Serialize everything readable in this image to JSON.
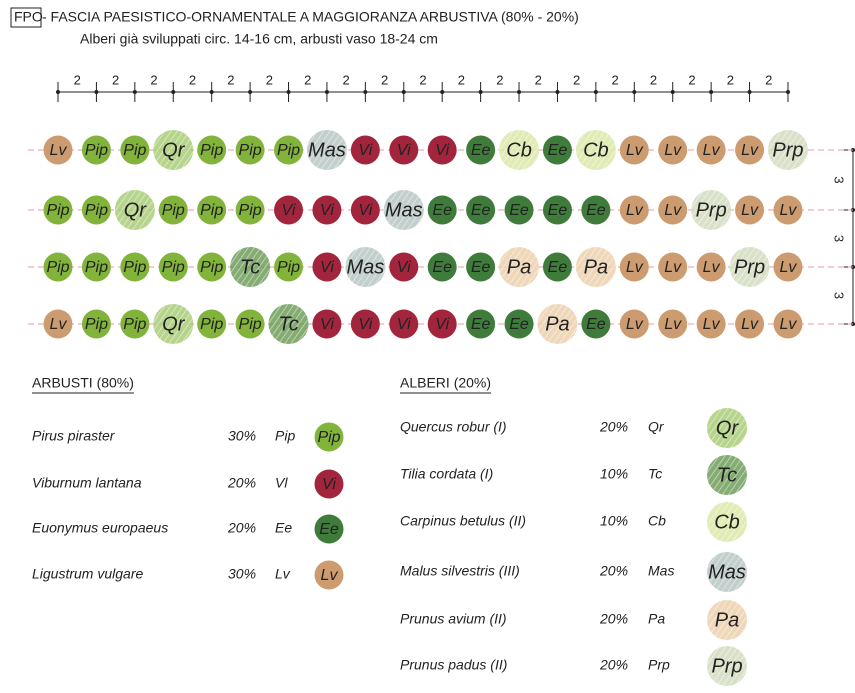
{
  "header": {
    "code": "FPO",
    "title": " - FASCIA PAESISTICO-ORNAMENTALE A MAGGIORANZA ARBUSTIVA (80% - 20%)",
    "subtitle": "Alberi già sviluppati circ. 14-16 cm, arbusti vaso 18-24 cm"
  },
  "dimensions": {
    "top": [
      2,
      2,
      2,
      2,
      2,
      2,
      2,
      2,
      2,
      2,
      2,
      2,
      2,
      2,
      2,
      2,
      2,
      2,
      2
    ],
    "right": [
      3,
      3,
      3
    ]
  },
  "grid": [
    [
      "Lv",
      "Pip",
      "Pip",
      "Qr",
      "Pip",
      "Pip",
      "Pip",
      "Mas",
      "Vi",
      "Vi",
      "Vi",
      "Ee",
      "Cb",
      "Ee",
      "Cb",
      "Lv",
      "Lv",
      "Lv",
      "Lv",
      "Prp"
    ],
    [
      "Pip",
      "Pip",
      "Qr",
      "Pip",
      "Pip",
      "Pip",
      "Vi",
      "Vi",
      "Vi",
      "Mas",
      "Ee",
      "Ee",
      "Ee",
      "Ee",
      "Ee",
      "Lv",
      "Lv",
      "Prp",
      "Lv",
      "Lv"
    ],
    [
      "Pip",
      "Pip",
      "Pip",
      "Pip",
      "Pip",
      "Tc",
      "Pip",
      "Vi",
      "Mas",
      "Vi",
      "Ee",
      "Ee",
      "Pa",
      "Ee",
      "Pa",
      "Lv",
      "Lv",
      "Lv",
      "Prp",
      "Lv"
    ],
    [
      "Lv",
      "Pip",
      "Pip",
      "Qr",
      "Pip",
      "Pip",
      "Tc",
      "Vi",
      "Vi",
      "Vi",
      "Vi",
      "Ee",
      "Ee",
      "Pa",
      "Ee",
      "Lv",
      "Lv",
      "Lv",
      "Lv",
      "Lv"
    ]
  ],
  "legend": {
    "shrubs": {
      "title": "ARBUSTI (80%)",
      "items": [
        {
          "name": "Pirus piraster",
          "percent": "30%",
          "code": "Pip",
          "symbol": "Pip",
          "color": "#82b43c"
        },
        {
          "name": "Viburnum lantana",
          "percent": "20%",
          "code": "Vl",
          "symbol": "Vi",
          "color": "#a3253d"
        },
        {
          "name": "Euonymus europaeus",
          "percent": "20%",
          "code": "Ee",
          "symbol": "Ee",
          "color": "#3f7c3b"
        },
        {
          "name": "Ligustrum vulgare",
          "percent": "30%",
          "code": "Lv",
          "symbol": "Lv",
          "color": "#cc9c70"
        }
      ]
    },
    "trees": {
      "title": "ALBERI (20%)",
      "items": [
        {
          "name": "Quercus robur (I)",
          "percent": "20%",
          "code": "Qr",
          "symbol": "Qr",
          "color": "#a9cc78"
        },
        {
          "name": "Tilia cordata (I)",
          "percent": "10%",
          "code": "Tc",
          "symbol": "Tc",
          "color": "#6e9e5a"
        },
        {
          "name": "Carpinus betulus (II)",
          "percent": "10%",
          "code": "Cb",
          "symbol": "Cb",
          "color": "#dbe8a8"
        },
        {
          "name": "Malus silvestris (III)",
          "percent": "20%",
          "code": "Mas",
          "symbol": "Mas",
          "color": "#b7c7c4"
        },
        {
          "name": "Prunus avium (II)",
          "percent": "20%",
          "code": "Pa",
          "symbol": "Pa",
          "color": "#ecd0ae"
        },
        {
          "name": "Prunus padus (II)",
          "percent": "20%",
          "code": "Prp",
          "symbol": "Prp",
          "color": "#d3dcc0"
        }
      ]
    }
  }
}
